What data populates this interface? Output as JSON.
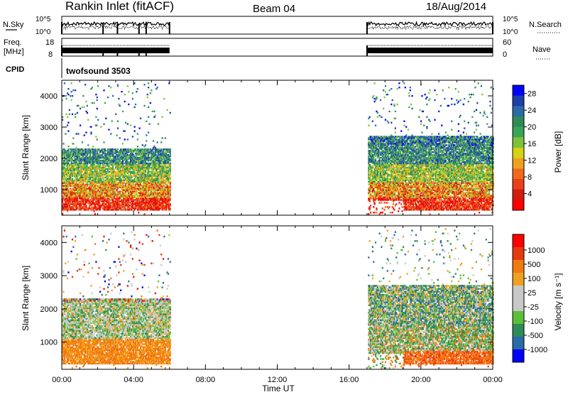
{
  "header": {
    "station": "Rankin Inlet (fitACF)",
    "beam": "Beam 04",
    "date": "18/Aug/2014"
  },
  "panels": {
    "nsky": {
      "label": "N.Sky",
      "ticks": [
        "10^5",
        "10^0"
      ],
      "right_label": "N.Search",
      "right_ticks": [
        "10^5",
        "10^0"
      ]
    },
    "freq": {
      "label_top": "Freq.",
      "label_bottom": "[MHz]",
      "ticks": [
        "18",
        "8"
      ],
      "right_label": "Nave",
      "right_ticks": [
        "60",
        "0"
      ]
    },
    "cpid": {
      "label": "CPID",
      "mode": "twofsound  3503"
    }
  },
  "colors": {
    "power": [
      "#0000ff",
      "#1f3fa8",
      "#2a6aa8",
      "#2e8b57",
      "#3aa55a",
      "#7cc23a",
      "#d6d216",
      "#f0a020",
      "#ef6a1a",
      "#e8401a",
      "#d21c10",
      "#ff0000"
    ],
    "velocity": [
      "#ff0000",
      "#e53a10",
      "#f07a10",
      "#f0a020",
      "#c8c8c8",
      "#c8c8c8",
      "#5cbf3a",
      "#2e8b57",
      "#2a6aa8",
      "#0000ff"
    ]
  },
  "chart_data": [
    {
      "type": "heatmap",
      "name": "power",
      "ylabel": "Slant Range [km]",
      "xlabel": "",
      "x_ticks": [
        "00:00",
        "04:00",
        "08:00",
        "12:00",
        "16:00",
        "20:00",
        "00:00"
      ],
      "x_range_hours": [
        0,
        24
      ],
      "y_ticks": [
        1000,
        2000,
        3000,
        4000
      ],
      "y_range_km": [
        180,
        4500
      ],
      "data_gap_hours": [
        6.0,
        17.0
      ],
      "colorbar": {
        "label": "Power [dB]",
        "ticks": [
          4,
          8,
          12,
          16,
          20,
          24,
          28
        ]
      }
    },
    {
      "type": "heatmap",
      "name": "velocity",
      "ylabel": "Slant Range [km]",
      "xlabel": "Time UT",
      "x_ticks": [
        "00:00",
        "04:00",
        "08:00",
        "12:00",
        "16:00",
        "20:00",
        "00:00"
      ],
      "x_range_hours": [
        0,
        24
      ],
      "y_ticks": [
        1000,
        2000,
        3000,
        4000
      ],
      "y_range_km": [
        180,
        4500
      ],
      "data_gap_hours": [
        6.0,
        17.0
      ],
      "colorbar": {
        "label": "Velocity [m s⁻¹]",
        "ticks": [
          1000,
          500,
          100,
          25,
          -25,
          -100,
          -500,
          -1000
        ]
      }
    }
  ]
}
